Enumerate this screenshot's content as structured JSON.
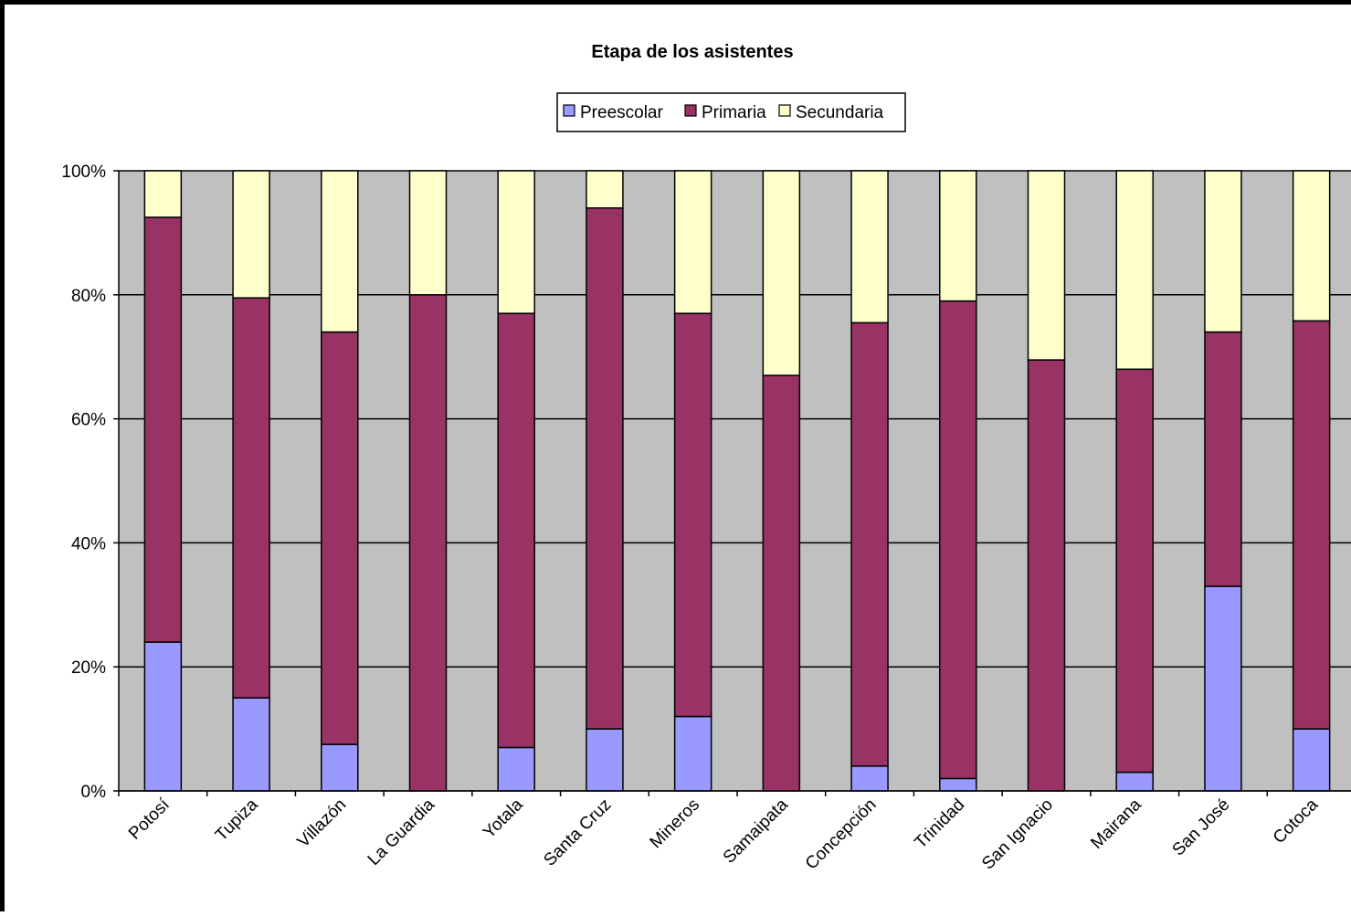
{
  "chart_data": {
    "type": "bar",
    "stacked": true,
    "percent": true,
    "title": "Etapa de los asistentes",
    "xlabel": "",
    "ylabel": "",
    "categories": [
      "Potosí",
      "Tupiza",
      "Villazón",
      "La Guardia",
      "Yotala",
      "Santa Cruz",
      "Mineros",
      "Samaipata",
      "Concepción",
      "Trinidad",
      "San Ignacio",
      "Mairana",
      "San José",
      "Cotoca"
    ],
    "series": [
      {
        "name": "Preescolar",
        "color": "#9999FF",
        "values": [
          24,
          15,
          7.5,
          0,
          7,
          10,
          12,
          0,
          4,
          2,
          0,
          3,
          33,
          10
        ]
      },
      {
        "name": "Primaria",
        "color": "#993366",
        "values": [
          68.5,
          64.5,
          66.5,
          80,
          70,
          84,
          65,
          67,
          71.5,
          77,
          69.5,
          65,
          41,
          65.8
        ]
      },
      {
        "name": "Secundaria",
        "color": "#FFFFCC",
        "values": [
          7.5,
          20.5,
          26,
          20,
          23,
          6,
          23,
          33,
          24.5,
          21,
          30.5,
          32,
          26,
          24.2
        ]
      }
    ],
    "ylim": [
      0,
      100
    ],
    "yticks": [
      "0%",
      "20%",
      "40%",
      "60%",
      "80%",
      "100%"
    ],
    "legend_position": "top",
    "grid": true,
    "plot_background": "#C0C0C0"
  }
}
